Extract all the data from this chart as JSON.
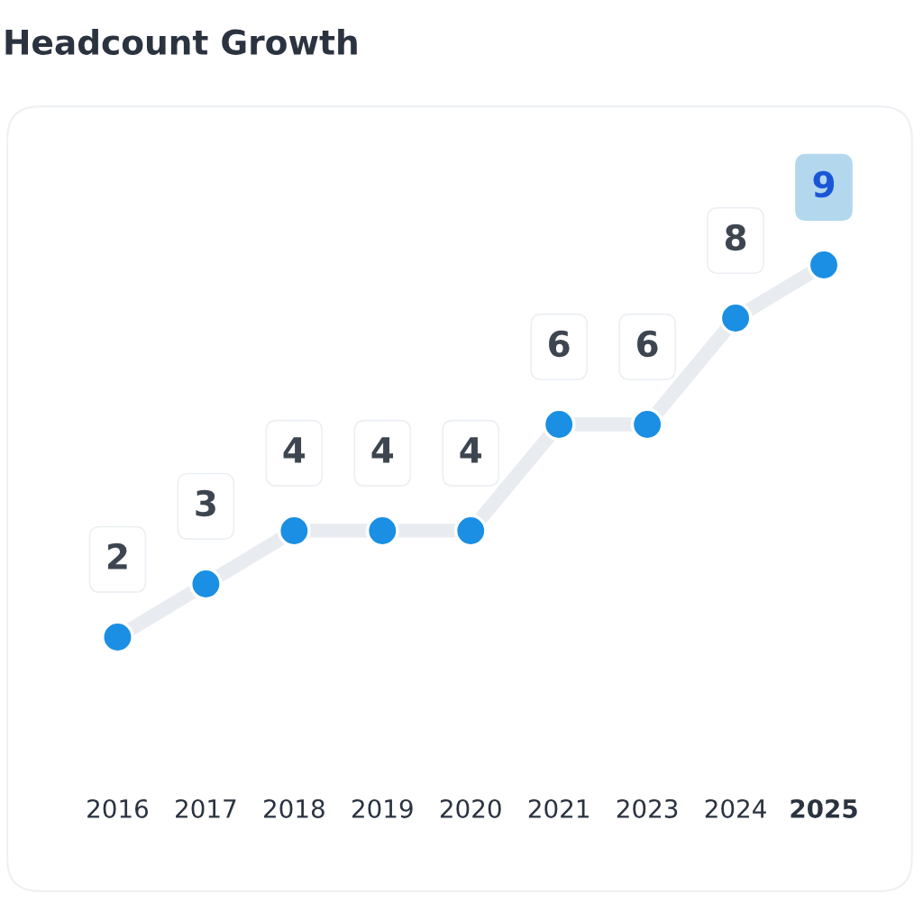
{
  "chart_data": {
    "type": "line",
    "title": "Headcount Growth",
    "categories": [
      "2016",
      "2017",
      "2018",
      "2019",
      "2020",
      "2021",
      "2023",
      "2024",
      "2025"
    ],
    "series": [
      {
        "color": "#e8ebf0",
        "values": [
          2,
          3,
          4,
          4,
          4,
          6,
          6,
          8,
          9
        ]
      }
    ],
    "data_labels": true,
    "marker": "circle",
    "line_style": "solid",
    "grid": false,
    "legend": false
  }
}
